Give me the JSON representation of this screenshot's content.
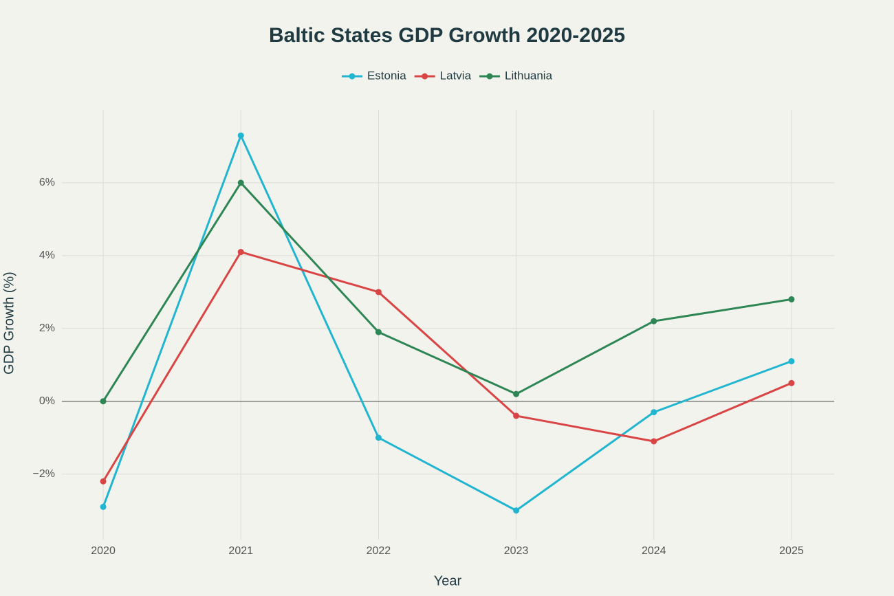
{
  "chart_data": {
    "type": "line",
    "title": "Baltic States GDP Growth 2020-2025",
    "x_label": "Year",
    "y_label": "GDP Growth (%)",
    "x": [
      2020,
      2021,
      2022,
      2023,
      2024,
      2025
    ],
    "series": [
      {
        "name": "Estonia",
        "color": "#22b5d0",
        "values": [
          -2.9,
          7.3,
          -1.0,
          -3.0,
          -0.3,
          1.1
        ]
      },
      {
        "name": "Latvia",
        "color": "#d94545",
        "values": [
          -2.2,
          4.1,
          3.0,
          -0.4,
          -1.1,
          0.5
        ]
      },
      {
        "name": "Lithuania",
        "color": "#2e8654",
        "values": [
          0,
          6.0,
          1.9,
          0.2,
          2.2,
          2.8
        ]
      }
    ],
    "xlim": [
      2019.7,
      2025.31
    ],
    "xticks": [
      2020,
      2021,
      2022,
      2023,
      2024,
      2025
    ],
    "ylim": [
      -3.8,
      8.0
    ],
    "yticks": [
      {
        "value": -2,
        "label": "−2%"
      },
      {
        "value": 0,
        "label": "0%"
      },
      {
        "value": 2,
        "label": "2%"
      },
      {
        "value": 4,
        "label": "4%"
      },
      {
        "value": 6,
        "label": "6%"
      }
    ],
    "grid": true,
    "legend": "top"
  }
}
